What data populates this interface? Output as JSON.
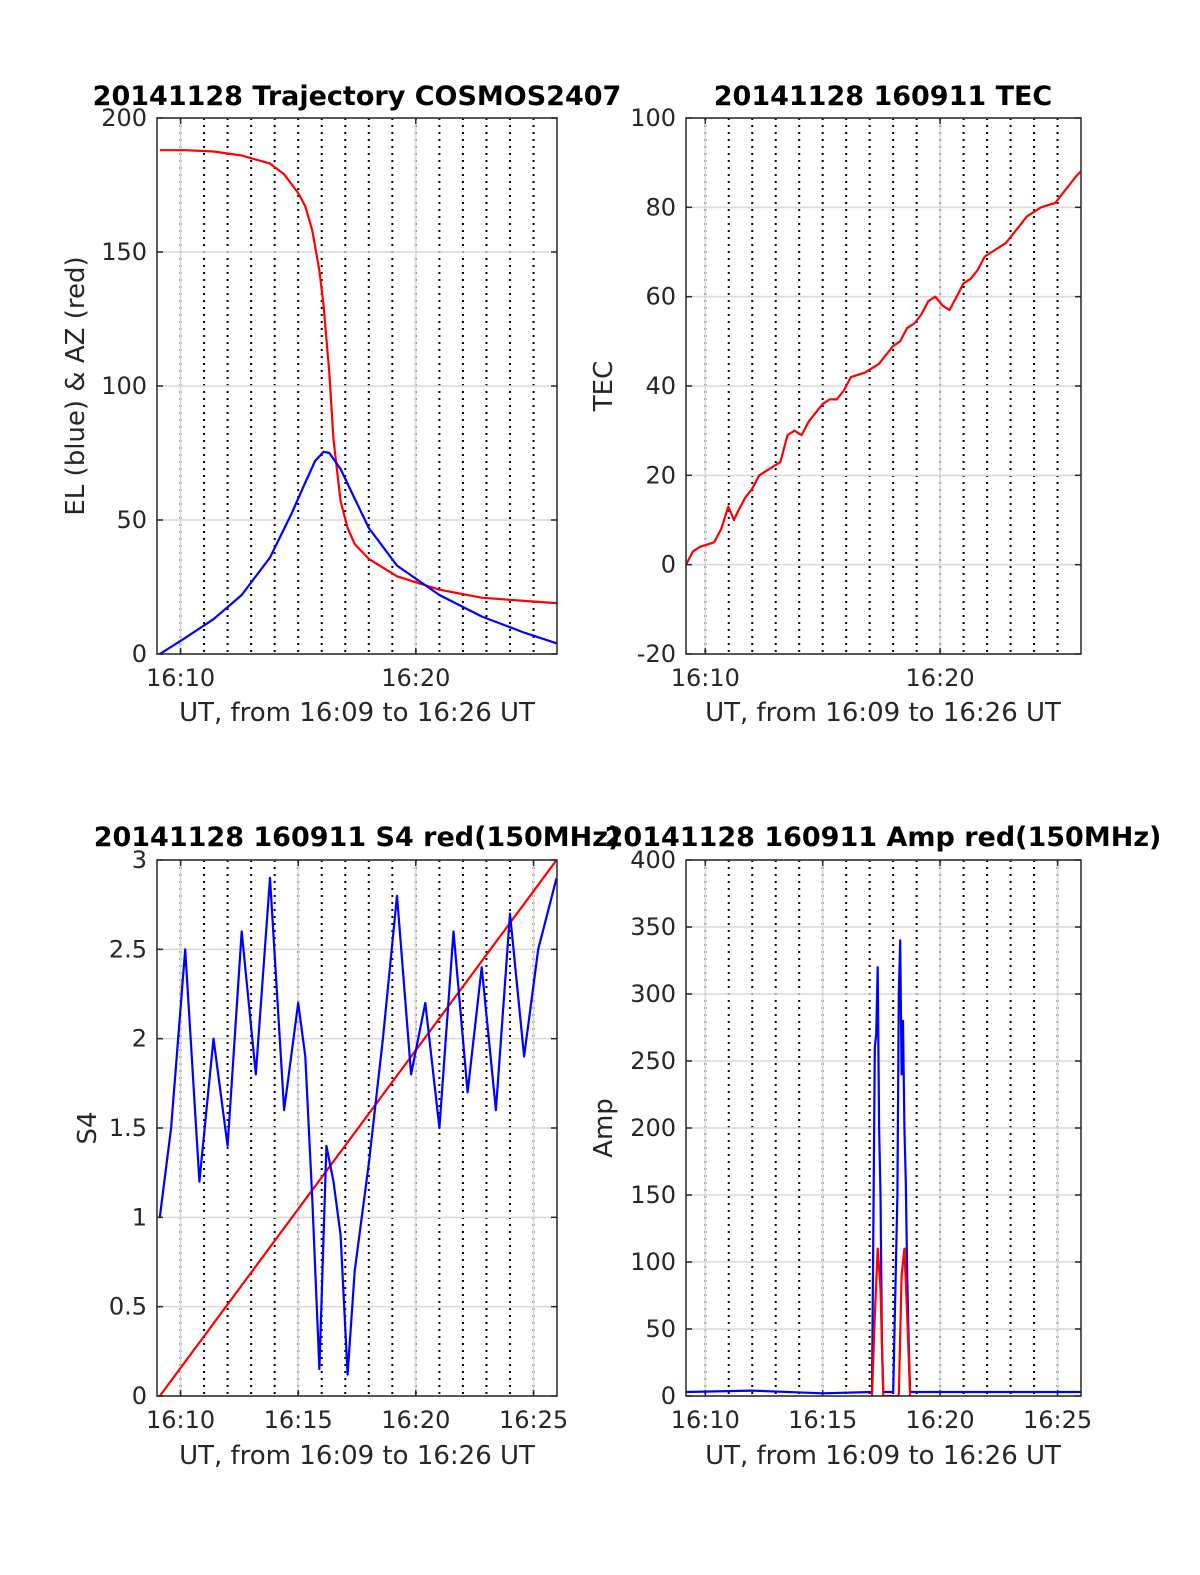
{
  "colors": {
    "el": "#0000ff",
    "az": "#ff0000",
    "tec": "#ff0000",
    "red": "#ff0000",
    "blue": "#0000ff"
  },
  "chart_data": [
    {
      "type": "line",
      "title": "20141128 Trajectory COSMOS2407",
      "xlabel": "UT, from 16:09 to 16:26 UT",
      "ylabel": "EL (blue) & AZ (red)",
      "xlim": [
        16.15,
        16.4333
      ],
      "ylim": [
        0,
        200
      ],
      "yticks": [
        0,
        50,
        100,
        150,
        200
      ],
      "xticks": [
        {
          "v": 16.1667,
          "label": "16:10"
        },
        {
          "v": 16.3333,
          "label": "16:20"
        }
      ],
      "grid": true,
      "series": [
        {
          "color": "red",
          "x": [
            16.152,
            16.17,
            16.19,
            16.21,
            16.23,
            16.24,
            16.25,
            16.255,
            16.26,
            16.265,
            16.268,
            16.272,
            16.275,
            16.28,
            16.285,
            16.29,
            16.3,
            16.32,
            16.35,
            16.38,
            16.41,
            16.433
          ],
          "values": [
            188,
            188,
            187.5,
            186,
            183,
            179,
            172,
            167,
            158,
            143,
            130,
            105,
            80,
            57,
            47,
            41,
            35.5,
            29,
            24,
            21,
            19.8,
            19
          ]
        },
        {
          "color": "blue",
          "x": [
            16.152,
            16.17,
            16.19,
            16.21,
            16.23,
            16.245,
            16.255,
            16.262,
            16.268,
            16.272,
            16.28,
            16.29,
            16.3,
            16.32,
            16.35,
            16.38,
            16.41,
            16.433
          ],
          "values": [
            0,
            6,
            13,
            22,
            36,
            52,
            64,
            72,
            75.5,
            75,
            69,
            58,
            47,
            33,
            22,
            14,
            8,
            4
          ]
        }
      ]
    },
    {
      "type": "line",
      "title": "20141128 160911 TEC",
      "xlabel": "UT, from 16:09 to 16:26 UT",
      "ylabel": "TEC",
      "xlim": [
        16.153,
        16.4333
      ],
      "ylim": [
        -20,
        100
      ],
      "yticks": [
        -20,
        0,
        20,
        40,
        60,
        80,
        100
      ],
      "xticks": [
        {
          "v": 16.1667,
          "label": "16:10"
        },
        {
          "v": 16.3333,
          "label": "16:20"
        }
      ],
      "grid": true,
      "series": [
        {
          "color": "red",
          "x": [
            16.153,
            16.158,
            16.163,
            16.168,
            16.173,
            16.178,
            16.183,
            16.187,
            16.19,
            16.195,
            16.2,
            16.205,
            16.21,
            16.215,
            16.22,
            16.225,
            16.23,
            16.235,
            16.24,
            16.245,
            16.25,
            16.255,
            16.26,
            16.265,
            16.27,
            16.275,
            16.28,
            16.29,
            16.3,
            16.305,
            16.31,
            16.315,
            16.32,
            16.325,
            16.33,
            16.335,
            16.34,
            16.345,
            16.35,
            16.355,
            16.36,
            16.365,
            16.37,
            16.375,
            16.38,
            16.385,
            16.39,
            16.395,
            16.4,
            16.405,
            16.41,
            16.415,
            16.42,
            16.425,
            16.43,
            16.433
          ],
          "values": [
            0,
            3,
            4,
            4.5,
            5,
            8,
            13,
            10,
            12,
            15,
            17,
            20,
            21,
            22,
            23,
            29,
            30,
            29,
            32,
            34,
            36,
            37,
            37,
            39,
            42,
            42.5,
            43,
            45,
            49,
            50,
            53,
            54,
            56,
            59,
            60,
            58,
            57,
            60,
            63,
            64,
            66,
            69,
            70,
            71,
            72,
            74,
            76,
            78,
            79,
            80,
            80.5,
            81,
            83,
            85,
            87,
            88
          ]
        }
      ]
    },
    {
      "type": "line",
      "title": "20141128 160911 S4 red(150MHz)",
      "xlabel": "UT, from 16:09 to 16:26 UT",
      "ylabel": "S4",
      "xlim": [
        16.15,
        16.4333
      ],
      "ylim": [
        0,
        3
      ],
      "yticks": [
        0,
        0.5,
        1,
        1.5,
        2,
        2.5,
        3
      ],
      "yticklabels": [
        "0",
        "0.5",
        "1",
        "1.5",
        "2",
        "2.5",
        "3"
      ],
      "xticks": [
        {
          "v": 16.1667,
          "label": "16:10"
        },
        {
          "v": 16.25,
          "label": "16:15"
        },
        {
          "v": 16.3333,
          "label": "16:20"
        },
        {
          "v": 16.4167,
          "label": "16:25"
        }
      ],
      "grid": true,
      "series": [
        {
          "color": "red",
          "x": [
            16.152,
            16.433
          ],
          "values": [
            0,
            3
          ]
        },
        {
          "color": "blue",
          "x": [
            16.152,
            16.16,
            16.17,
            16.18,
            16.19,
            16.2,
            16.21,
            16.22,
            16.23,
            16.24,
            16.25,
            16.255,
            16.26,
            16.265,
            16.27,
            16.275,
            16.28,
            16.285,
            16.29,
            16.3,
            16.31,
            16.32,
            16.33,
            16.34,
            16.35,
            16.36,
            16.37,
            16.38,
            16.39,
            16.4,
            16.41,
            16.42,
            16.433
          ],
          "values": [
            1.0,
            1.5,
            2.5,
            1.2,
            2.0,
            1.4,
            2.6,
            1.8,
            2.9,
            1.6,
            2.2,
            1.9,
            1.1,
            0.15,
            1.4,
            1.2,
            0.9,
            0.12,
            0.7,
            1.3,
            2.0,
            2.8,
            1.8,
            2.2,
            1.5,
            2.6,
            1.7,
            2.4,
            1.6,
            2.7,
            1.9,
            2.5,
            2.9
          ]
        }
      ]
    },
    {
      "type": "line",
      "title": "20141128 160911 Amp red(150MHz)",
      "xlabel": "UT, from 16:09 to 16:26 UT",
      "ylabel": "Amp",
      "xlim": [
        16.153,
        16.4333
      ],
      "ylim": [
        0,
        400
      ],
      "yticks": [
        0,
        50,
        100,
        150,
        200,
        250,
        300,
        350,
        400
      ],
      "xticks": [
        {
          "v": 16.1667,
          "label": "16:10"
        },
        {
          "v": 16.25,
          "label": "16:15"
        },
        {
          "v": 16.3333,
          "label": "16:20"
        },
        {
          "v": 16.4167,
          "label": "16:25"
        }
      ],
      "grid": true,
      "series": [
        {
          "color": "blue",
          "x": [
            16.153,
            16.2,
            16.25,
            16.285,
            16.286,
            16.287,
            16.288,
            16.289,
            16.29,
            16.291,
            16.292,
            16.293,
            16.3,
            16.303,
            16.304,
            16.305,
            16.306,
            16.307,
            16.308,
            16.309,
            16.31,
            16.311,
            16.312,
            16.35,
            16.4,
            16.433
          ],
          "values": [
            3,
            4,
            2,
            3,
            130,
            260,
            270,
            320,
            200,
            150,
            40,
            3,
            3,
            150,
            300,
            340,
            240,
            280,
            200,
            160,
            90,
            40,
            3,
            3,
            3,
            3
          ]
        },
        {
          "color": "red",
          "x": [
            16.285,
            16.287,
            16.289,
            16.291,
            16.293,
            16.304,
            16.306,
            16.308,
            16.31,
            16.312
          ],
          "values": [
            0,
            60,
            110,
            80,
            0,
            0,
            90,
            110,
            60,
            0
          ]
        }
      ]
    }
  ]
}
